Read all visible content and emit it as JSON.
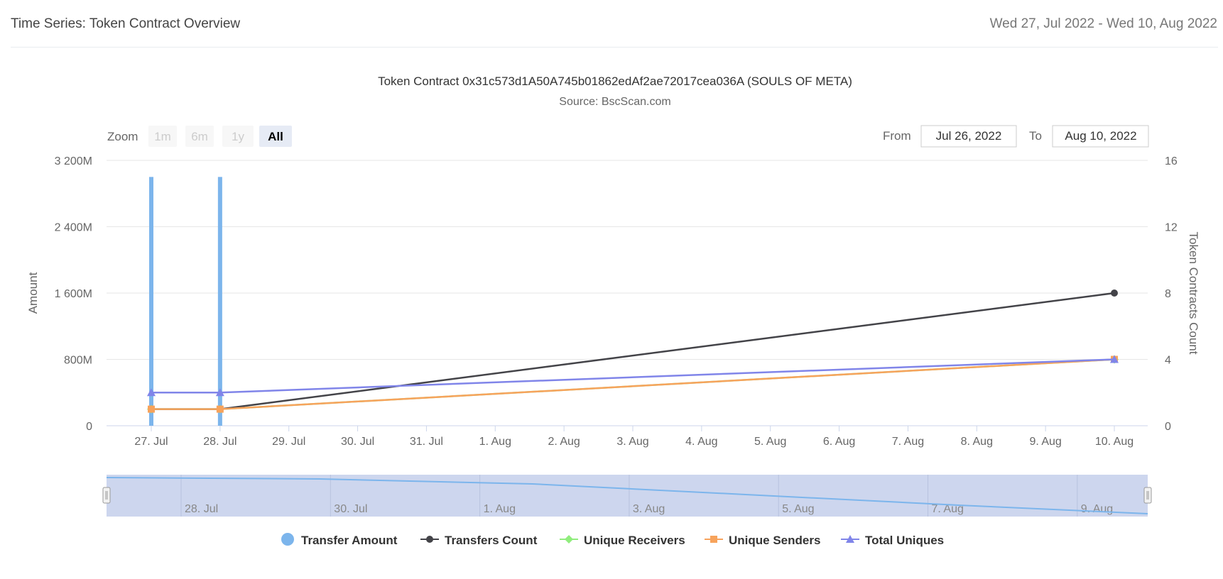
{
  "header": {
    "title": "Time Series: Token Contract Overview",
    "date_range": "Wed 27, Jul 2022 - Wed 10, Aug 2022"
  },
  "range_selector": {
    "zoom_label": "Zoom",
    "buttons": [
      "1m",
      "6m",
      "1y",
      "All"
    ],
    "active": "All",
    "from_label": "From",
    "from_value": "Jul 26, 2022",
    "to_label": "To",
    "to_value": "Aug 10, 2022"
  },
  "navigator": {
    "labels": [
      "28. Jul",
      "30. Jul",
      "1. Aug",
      "3. Aug",
      "5. Aug",
      "7. Aug",
      "9. Aug"
    ]
  },
  "colors": {
    "transfer_amount": "#7cb5ec",
    "transfers_count": "#434348",
    "unique_receivers": "#90ed7d",
    "unique_senders": "#f7a35c",
    "total_uniques": "#8085e9"
  },
  "chart_data": {
    "type": "bar",
    "title": "Token Contract 0x31c573d1A50A745b01862edAf2ae72017cea036A (SOULS OF META)",
    "subtitle": "Source: BscScan.com",
    "categories": [
      "27. Jul",
      "28. Jul",
      "29. Jul",
      "30. Jul",
      "31. Jul",
      "1. Aug",
      "2. Aug",
      "3. Aug",
      "4. Aug",
      "5. Aug",
      "6. Aug",
      "7. Aug",
      "8. Aug",
      "9. Aug",
      "10. Aug"
    ],
    "ylabel_left": "Amount",
    "ylabel_right": "Token Contracts Count",
    "yleft_ticks": [
      "0",
      "800M",
      "1 600M",
      "2 400M",
      "3 200M"
    ],
    "yleft_lim": [
      0,
      3200
    ],
    "yright_ticks": [
      "0",
      "4",
      "8",
      "12",
      "16"
    ],
    "yright_lim": [
      0,
      16
    ],
    "series": [
      {
        "name": "Transfer Amount",
        "type": "column",
        "axis": "left",
        "unit": "M",
        "points": [
          {
            "x": "27. Jul",
            "y": 3000
          },
          {
            "x": "28. Jul",
            "y": 3000
          }
        ]
      },
      {
        "name": "Transfers Count",
        "type": "line",
        "axis": "right",
        "points": [
          {
            "x": "27. Jul",
            "y": 1
          },
          {
            "x": "28. Jul",
            "y": 1
          },
          {
            "x": "10. Aug",
            "y": 8
          }
        ]
      },
      {
        "name": "Unique Receivers",
        "type": "line",
        "axis": "right",
        "points": [
          {
            "x": "27. Jul",
            "y": 1
          },
          {
            "x": "28. Jul",
            "y": 1
          },
          {
            "x": "10. Aug",
            "y": 4
          }
        ]
      },
      {
        "name": "Unique Senders",
        "type": "line",
        "axis": "right",
        "points": [
          {
            "x": "27. Jul",
            "y": 1
          },
          {
            "x": "28. Jul",
            "y": 1
          },
          {
            "x": "10. Aug",
            "y": 4
          }
        ]
      },
      {
        "name": "Total Uniques",
        "type": "line",
        "axis": "right",
        "points": [
          {
            "x": "27. Jul",
            "y": 2
          },
          {
            "x": "28. Jul",
            "y": 2
          },
          {
            "x": "10. Aug",
            "y": 4
          }
        ]
      }
    ],
    "legend": [
      "Transfer Amount",
      "Transfers Count",
      "Unique Receivers",
      "Unique Senders",
      "Total Uniques"
    ]
  }
}
